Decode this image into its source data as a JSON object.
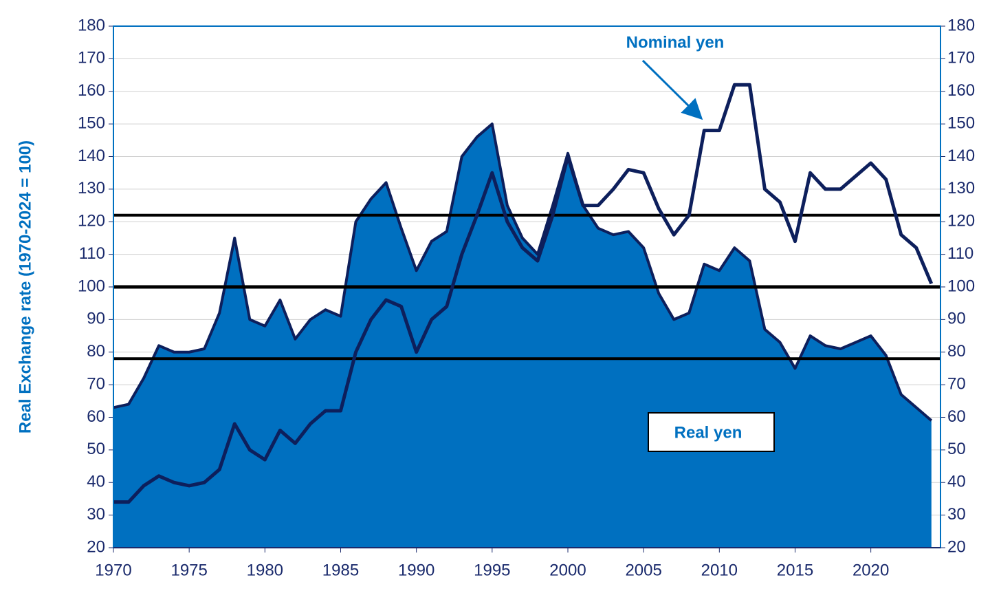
{
  "chart_data": {
    "type": "area-line",
    "y_label": "Real Exchange rate (1970-2024 = 100)",
    "x": [
      1970,
      1971,
      1972,
      1973,
      1974,
      1975,
      1976,
      1977,
      1978,
      1979,
      1980,
      1981,
      1982,
      1983,
      1984,
      1985,
      1986,
      1987,
      1988,
      1989,
      1990,
      1991,
      1992,
      1993,
      1994,
      1995,
      1996,
      1997,
      1998,
      1999,
      2000,
      2001,
      2002,
      2003,
      2004,
      2005,
      2006,
      2007,
      2008,
      2009,
      2010,
      2011,
      2012,
      2013,
      2014,
      2015,
      2016,
      2017,
      2018,
      2019,
      2020,
      2021,
      2022,
      2023,
      2024
    ],
    "series": [
      {
        "name": "Real yen",
        "color": "#0070c0",
        "line_color": "#0d1f5c",
        "kind": "area",
        "values": [
          63,
          64,
          72,
          82,
          80,
          80,
          81,
          92,
          115,
          90,
          88,
          96,
          84,
          90,
          93,
          91,
          120,
          127,
          132,
          118,
          105,
          114,
          117,
          140,
          146,
          150,
          125,
          115,
          110,
          125,
          141,
          125,
          118,
          116,
          117,
          112,
          98,
          90,
          92,
          107,
          105,
          112,
          108,
          87,
          83,
          75,
          85,
          82,
          81,
          83,
          85,
          79,
          67,
          63,
          59
        ]
      },
      {
        "name": "Nominal yen",
        "color": "#0d1f5c",
        "kind": "line",
        "values": [
          34,
          34,
          39,
          42,
          40,
          39,
          40,
          44,
          58,
          50,
          47,
          56,
          52,
          58,
          62,
          62,
          80,
          90,
          96,
          94,
          80,
          90,
          94,
          110,
          122,
          135,
          120,
          112,
          108,
          122,
          140,
          125,
          125,
          130,
          136,
          135,
          124,
          116,
          122,
          148,
          148,
          162,
          162,
          130,
          126,
          114,
          135,
          130,
          130,
          134,
          138,
          133,
          116,
          112,
          101
        ]
      }
    ],
    "reference_lines": [
      122,
      100,
      78
    ],
    "xlim": [
      1970,
      2024.6
    ],
    "xticks": [
      1970,
      1975,
      1980,
      1985,
      1990,
      1995,
      2000,
      2005,
      2010,
      2015,
      2020
    ],
    "ylim": [
      20,
      180
    ],
    "yticks": [
      20,
      30,
      40,
      50,
      60,
      70,
      80,
      90,
      100,
      110,
      120,
      130,
      140,
      150,
      160,
      170,
      180
    ],
    "y2lim": [
      20,
      180
    ],
    "y2ticks": [
      20,
      30,
      40,
      50,
      60,
      70,
      80,
      90,
      100,
      110,
      120,
      130,
      140,
      150,
      160,
      170,
      180
    ],
    "grid": true
  }
}
